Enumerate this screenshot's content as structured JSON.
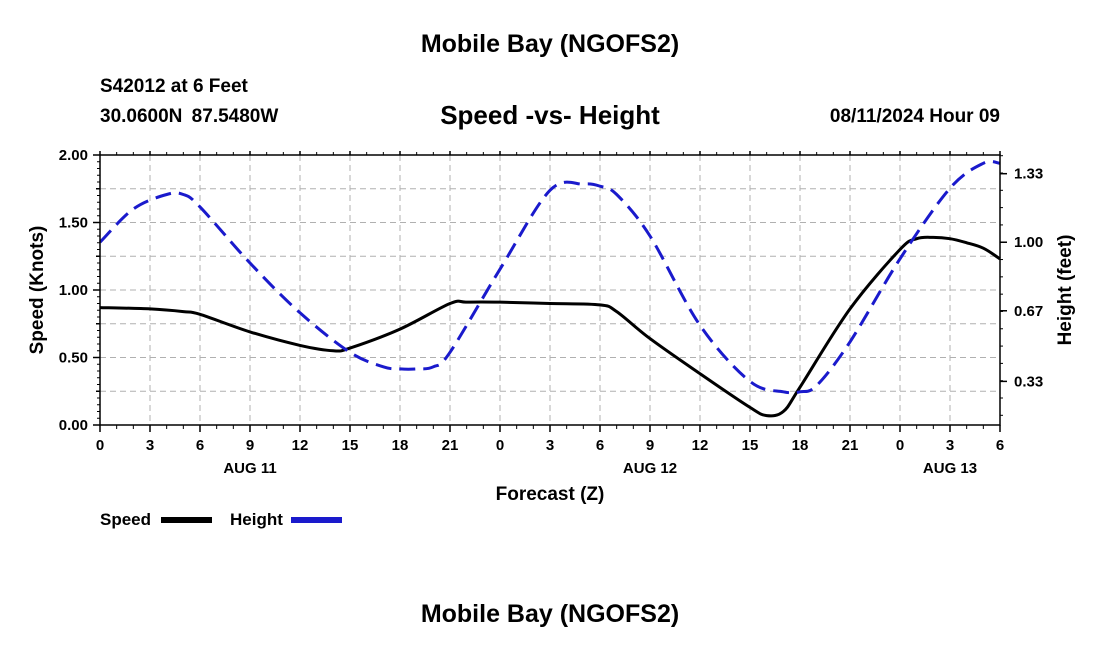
{
  "header": {
    "title": "Mobile Bay (NGOFS2)",
    "station": "S42012 at 6 Feet",
    "coordinates": "30.0600N  87.5480W",
    "subtitle": "Speed -vs- Height",
    "timestamp": "08/11/2024 Hour 09"
  },
  "footer": {
    "title": "Mobile Bay (NGOFS2)"
  },
  "chart_data": {
    "type": "line",
    "title": "Speed -vs- Height",
    "xlabel": "Forecast (Z)",
    "ylabel": "Speed (Knots)",
    "y2label": "Height (feet)",
    "x_tick_labels": [
      "0",
      "3",
      "6",
      "9",
      "12",
      "15",
      "18",
      "21",
      "0",
      "3",
      "6",
      "9",
      "12",
      "15",
      "18",
      "21",
      "0",
      "3",
      "6"
    ],
    "date_labels": [
      {
        "hour": 9,
        "label": "AUG 11"
      },
      {
        "hour": 33,
        "label": "AUG 12"
      },
      {
        "hour": 51,
        "label": "AUG 13"
      }
    ],
    "xlim": [
      0,
      54
    ],
    "ylim": [
      0,
      2.0
    ],
    "y_ticks": [
      "0.00",
      "0.50",
      "1.00",
      "1.50",
      "2.00"
    ],
    "y2lim": [
      0.12,
      1.42
    ],
    "y2_ticks": [
      "0.33",
      "0.67",
      "1.00",
      "1.33"
    ],
    "grid": true,
    "legend_position": "bottom-left",
    "series": [
      {
        "name": "Speed",
        "axis": "left",
        "color": "#000000",
        "style": "solid",
        "x": [
          0,
          3,
          5,
          6,
          9,
          12,
          14,
          15,
          18,
          21,
          22,
          24,
          27,
          30,
          31,
          33,
          36,
          39,
          40,
          41,
          42,
          45,
          48,
          49,
          50,
          51,
          52,
          53,
          54
        ],
        "y": [
          0.87,
          0.86,
          0.84,
          0.82,
          0.69,
          0.59,
          0.55,
          0.57,
          0.71,
          0.9,
          0.91,
          0.91,
          0.9,
          0.89,
          0.84,
          0.64,
          0.38,
          0.13,
          0.07,
          0.1,
          0.28,
          0.86,
          1.3,
          1.38,
          1.39,
          1.38,
          1.35,
          1.31,
          1.23
        ]
      },
      {
        "name": "Height",
        "axis": "right",
        "color": "#1a1acc",
        "style": "dashed",
        "x": [
          0,
          2,
          4,
          5,
          6,
          9,
          12,
          15,
          17,
          18,
          19,
          20,
          21,
          24,
          27,
          29,
          30,
          31,
          33,
          36,
          39,
          41,
          42,
          43,
          45,
          48,
          51,
          53,
          54
        ],
        "y": [
          1.0,
          1.16,
          1.23,
          1.23,
          1.17,
          0.9,
          0.66,
          0.47,
          0.4,
          0.39,
          0.39,
          0.4,
          0.47,
          0.87,
          1.25,
          1.28,
          1.27,
          1.23,
          1.03,
          0.6,
          0.33,
          0.28,
          0.28,
          0.31,
          0.52,
          0.92,
          1.26,
          1.38,
          1.38
        ]
      }
    ]
  }
}
